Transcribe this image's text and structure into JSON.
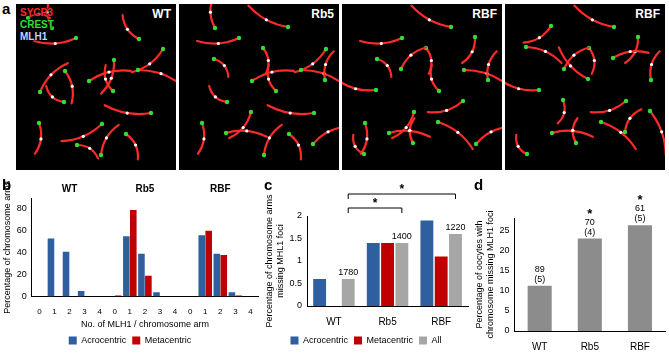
{
  "image_panel": {
    "panel": "a",
    "channels": [
      {
        "name": "SYCP3",
        "color": "#ff2a2a"
      },
      {
        "name": "CREST",
        "color": "#33dd33"
      },
      {
        "name": "MLH1",
        "color": "#b8d8ff"
      }
    ],
    "images": [
      "WT",
      "Rb5",
      "RBF",
      "RBF"
    ]
  },
  "chart_data": [
    {
      "panel": "b",
      "type": "bar",
      "categories": [
        "0",
        "1",
        "2",
        "3",
        "4",
        "0",
        "1",
        "2",
        "3",
        "4",
        "0",
        "1",
        "2",
        "3",
        "4"
      ],
      "group_labels": [
        "WT",
        "Rb5",
        "RBF"
      ],
      "xlabel": "No. of MLH1 / chromosome arm",
      "ylabel": "Percentage of chromosome arms",
      "ylim": [
        0,
        90
      ],
      "yticks": [
        0,
        20,
        40,
        60,
        80
      ],
      "grid": false,
      "legend": "bottom",
      "series": [
        {
          "name": "Acrocentric",
          "color": "#2f5f9e",
          "values": [
            0,
            53,
            41,
            5,
            0,
            0,
            55,
            39,
            4,
            0,
            0,
            56,
            39,
            4,
            0
          ]
        },
        {
          "name": "Metacentric",
          "color": "#c00000",
          "values": [
            null,
            null,
            null,
            null,
            null,
            1,
            79,
            19,
            0,
            0,
            0,
            60,
            38,
            1,
            0
          ]
        }
      ]
    },
    {
      "panel": "c",
      "type": "bar",
      "categories": [
        "WT",
        "Rb5",
        "RBF"
      ],
      "ylabel": [
        "Percentage of chromosome arms",
        "missing MHL1 foci"
      ],
      "ylim": [
        0,
        2
      ],
      "yticks": [
        0,
        0.5,
        1,
        1.5,
        2
      ],
      "grid": false,
      "legend": "bottom",
      "series": [
        {
          "name": "Acrocentric",
          "color": "#2f5f9e",
          "values": [
            0.6,
            1.4,
            1.9
          ]
        },
        {
          "name": "Metacentric",
          "color": "#c00000",
          "values": [
            null,
            1.4,
            1.1
          ]
        },
        {
          "name": "All",
          "color": "#a6a6a6",
          "values": [
            0.6,
            1.4,
            1.6
          ],
          "annotations": [
            "1780",
            "1400",
            "1220"
          ]
        }
      ],
      "significance": [
        {
          "from": "WT",
          "to": "Rb5",
          "label": "*"
        },
        {
          "from": "WT",
          "to": "RBF",
          "label": "*"
        }
      ]
    },
    {
      "panel": "d",
      "type": "bar",
      "categories": [
        "WT",
        "Rb5",
        "RBF"
      ],
      "ylabel": [
        "Percentage of oocytes with",
        "chromosome missing MLH1 foci"
      ],
      "values": [
        11.2,
        22.9,
        26.2
      ],
      "color": "#8c8c8c",
      "annotations": [
        [
          "89",
          "(5)"
        ],
        [
          "70",
          "(4)"
        ],
        [
          "61",
          "(5)"
        ]
      ],
      "ylim": [
        0,
        28
      ],
      "yticks": [
        0,
        5,
        10,
        15,
        20,
        25
      ],
      "grid": false,
      "significance": [
        {
          "category": "Rb5",
          "label": "*"
        },
        {
          "category": "RBF",
          "label": "*"
        }
      ]
    }
  ]
}
